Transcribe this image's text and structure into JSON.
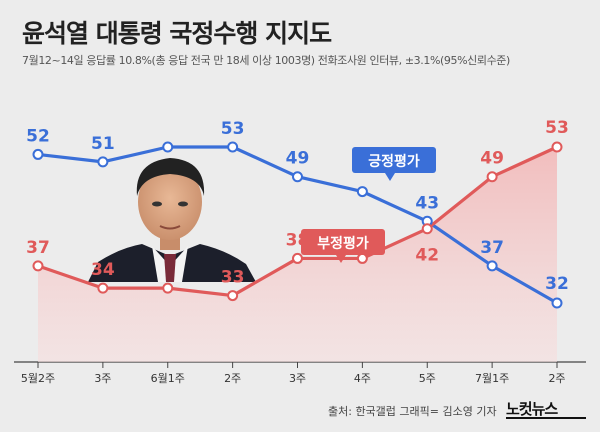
{
  "title": "윤석열 대통령 국정수행 지지도",
  "subtitle": "7월12~14일 응답률 10.8%(총 응답 전국 만 18세 이상 1003명) 전화조사원 인터뷰, ±3.1%(95%신뢰수준)",
  "footer": {
    "source": "출처: 한국갤럽   그래픽= 김소영 기자",
    "logo": "노컷뉴스"
  },
  "colors": {
    "approve": "#3a6fd8",
    "disapprove": "#e05a5a",
    "background": "#ececec"
  },
  "chart_data": {
    "type": "line",
    "categories": [
      "5월2주",
      "3주",
      "6월1주",
      "2주",
      "3주",
      "4주",
      "5주",
      "7월1주",
      "2주"
    ],
    "ylim": [
      25,
      60
    ],
    "grid": false,
    "series": [
      {
        "name": "긍정평가",
        "values": [
          52,
          51,
          53,
          53,
          49,
          47,
          43,
          37,
          32
        ]
      },
      {
        "name": "부정평가",
        "values": [
          37,
          34,
          34,
          33,
          38,
          38,
          42,
          49,
          53
        ]
      }
    ],
    "data_labels": {
      "긍정평가": [
        "52",
        "51",
        "",
        "53",
        "49",
        "",
        "43",
        "37",
        "32"
      ],
      "부정평가": [
        "37",
        "34",
        "",
        "33",
        "38",
        "",
        "42",
        "49",
        "53"
      ]
    }
  }
}
